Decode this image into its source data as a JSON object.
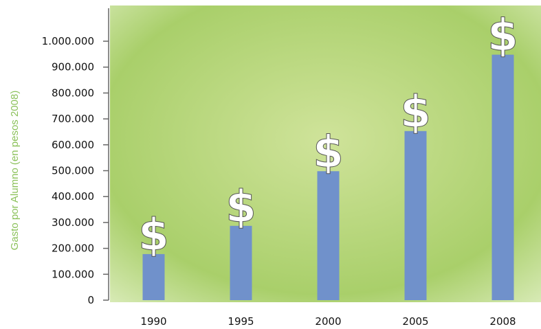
{
  "chart_data": {
    "type": "bar",
    "y_label": "Gasto por Alumno (en pesos 2008)",
    "categories": [
      "1990",
      "1995",
      "2000",
      "2005",
      "2008"
    ],
    "values": [
      178000,
      287000,
      498000,
      653000,
      948000
    ],
    "color": "#7091cb",
    "marker_symbol": "$",
    "ylim": [
      0,
      1127000
    ],
    "yticks": [
      0,
      {
        "value": 100000,
        "label": "100.000"
      },
      {
        "value": 200000,
        "label": "200.000"
      },
      {
        "value": 300000,
        "label": "300.000"
      },
      {
        "value": 400000,
        "label": "400.000"
      },
      {
        "value": 500000,
        "label": "500.000"
      },
      {
        "value": 600000,
        "label": "600.000"
      },
      {
        "value": 700000,
        "label": "700.000"
      },
      {
        "value": 800000,
        "label": "800.000"
      },
      {
        "value": 900000,
        "label": "900.000"
      },
      {
        "value": 1000000,
        "label": "1.000.000"
      }
    ]
  }
}
